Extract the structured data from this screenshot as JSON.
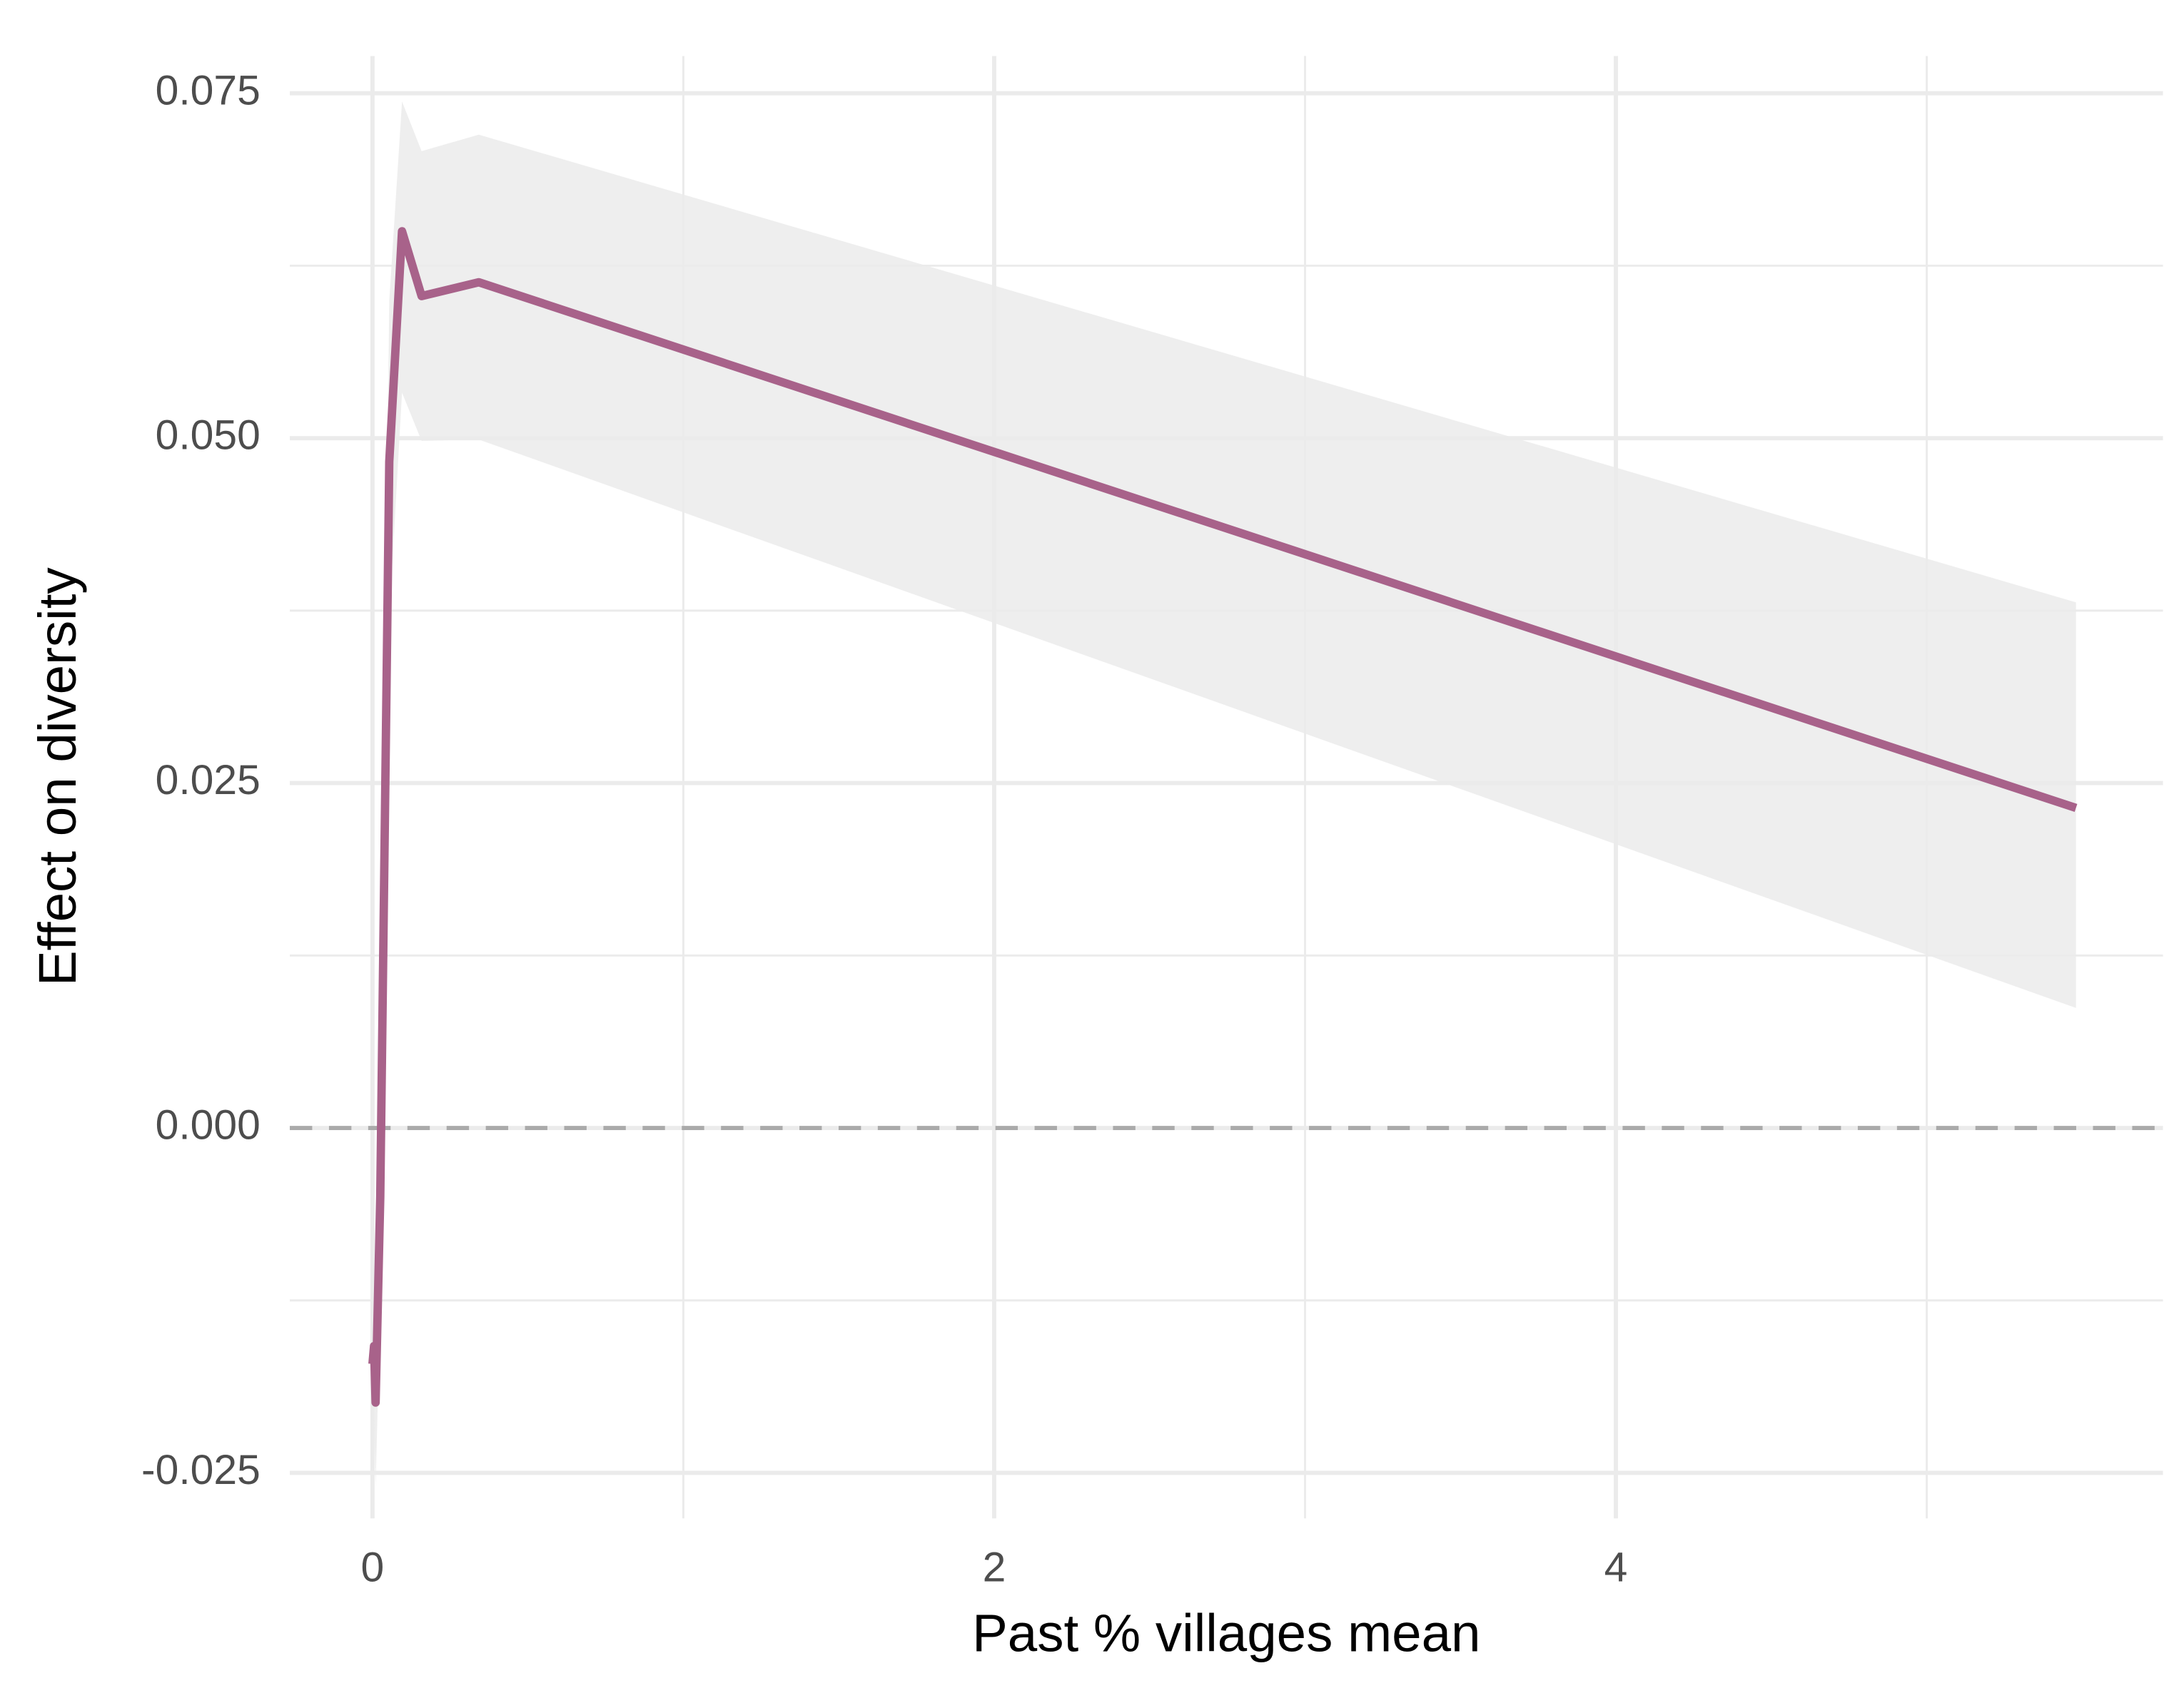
{
  "chart_data": {
    "type": "line",
    "x_label": "Past % villages mean",
    "y_label": "Effect on diversity",
    "x": [
      0,
      0.005,
      0.01,
      0.025,
      0.054,
      0.095,
      0.158,
      0.342,
      5.48
    ],
    "values": [
      -0.0171,
      -0.0158,
      -0.0199,
      -0.005,
      0.0483,
      0.065,
      0.0603,
      0.0613,
      0.0232
    ],
    "ribbon": {
      "upper": [
        -0.012,
        -0.01,
        -0.014,
        0.003,
        0.06,
        0.0744,
        0.0708,
        0.072,
        0.0381
      ],
      "lower": [
        -0.022,
        -0.021,
        -0.026,
        -0.013,
        0.037,
        0.0533,
        0.0498,
        0.0499,
        0.0087
      ],
      "color": "#ebebeb"
    },
    "color": "#a8628a",
    "hline": 0,
    "xlim": [
      -0.266,
      5.76
    ],
    "ylim": [
      -0.0283,
      0.0777
    ],
    "xticks": [
      0,
      2,
      4
    ],
    "yticks": [
      -0.025,
      {
        "value": 0,
        "label": "0.000"
      },
      0.025,
      {
        "value": 0.05,
        "label": "0.050"
      },
      0.075
    ],
    "grid": true
  }
}
